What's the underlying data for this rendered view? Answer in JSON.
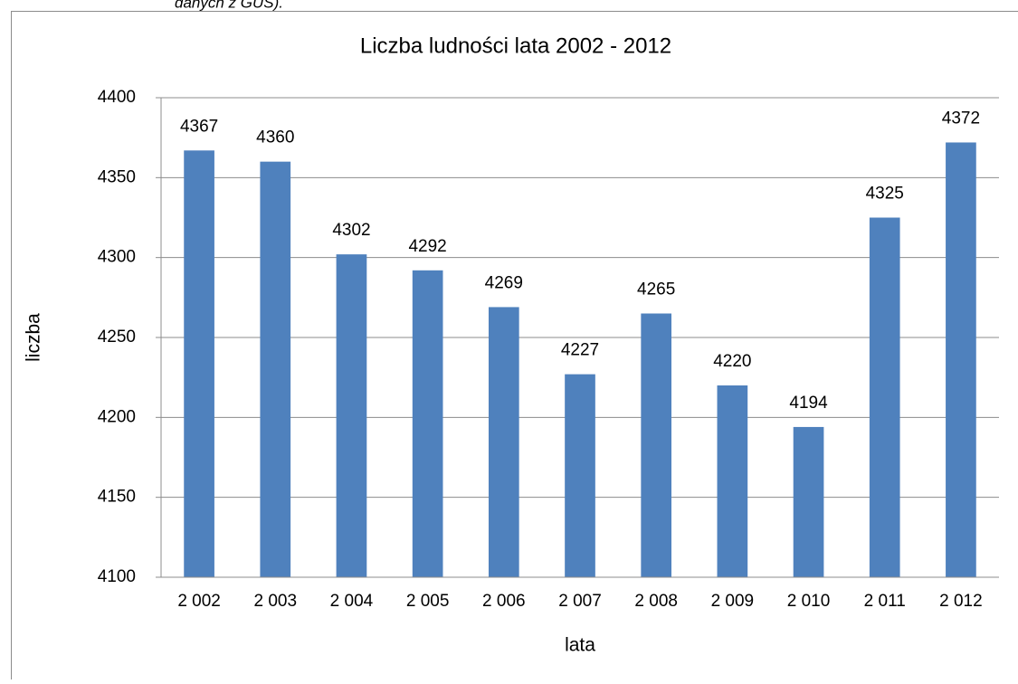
{
  "caption": "danych z GUS).",
  "chart_data": {
    "type": "bar",
    "title": "Liczba ludności lata 2002 - 2012",
    "x_label": "lata",
    "y_label": "liczba",
    "categories": [
      "2 002",
      "2 003",
      "2 004",
      "2 005",
      "2 006",
      "2 007",
      "2 008",
      "2 009",
      "2 010",
      "2 011",
      "2 012"
    ],
    "values": [
      4367,
      4360,
      4302,
      4292,
      4269,
      4227,
      4265,
      4220,
      4194,
      4325,
      4372
    ],
    "color": "#4f81bd",
    "ylim": [
      4100,
      4400
    ],
    "yticks": [
      4100,
      4150,
      4200,
      4250,
      4300,
      4350,
      4400
    ],
    "grid": true
  }
}
